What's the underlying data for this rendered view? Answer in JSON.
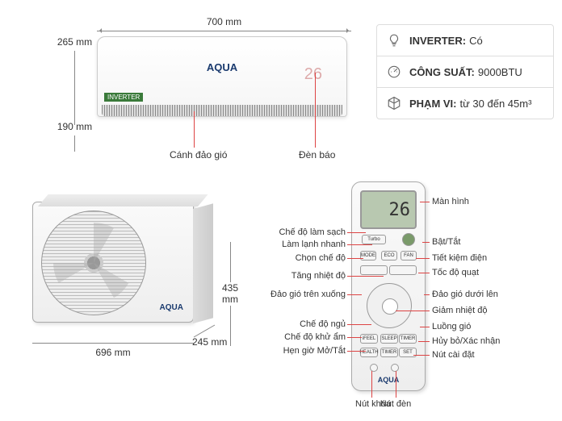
{
  "colors": {
    "callout": "#d44",
    "brand": "#1a3a6e",
    "dim": "#888",
    "lcd": "#b8c8b0"
  },
  "indoor": {
    "width": "700 mm",
    "height": "265 mm",
    "depth": "190 mm",
    "brand": "AQUA",
    "badge": "INVERTER",
    "display": "26",
    "callout_vent": "Cánh đảo gió",
    "callout_led": "Đèn báo"
  },
  "specs": [
    {
      "icon": "bulb",
      "label": "INVERTER:",
      "value": "Có"
    },
    {
      "icon": "gauge",
      "label": "CÔNG SUẤT:",
      "value": "9000BTU"
    },
    {
      "icon": "cube",
      "label": "PHẠM VI:",
      "value": "từ 30 đến 45m³"
    }
  ],
  "outdoor": {
    "brand": "AQUA",
    "width": "696 mm",
    "height": "435 mm",
    "depth": "245 mm"
  },
  "remote": {
    "brand": "AQUA",
    "display": "26",
    "labels_left": [
      "Chế độ làm sạch",
      "Làm lạnh nhanh",
      "Chọn chế độ",
      "Tăng nhiệt độ",
      "Đảo gió trên xuống",
      "Chế độ ngủ",
      "Chế độ khử ẩm",
      "Hẹn giờ Mở/Tắt"
    ],
    "labels_right": [
      "Màn hình",
      "Bật/Tắt",
      "Tiết kiệm điện",
      "Tốc độ quạt",
      "Đảo gió dưới lên",
      "Giảm nhiệt độ",
      "Luồng gió",
      "Hủy bỏ/Xác nhận",
      "Nút cài đặt"
    ],
    "labels_bottom": [
      "Nút khóa",
      "Nút đèn"
    ],
    "left_y": [
      68,
      83,
      100,
      122,
      145,
      182,
      198,
      215
    ],
    "left_lead_x": [
      133,
      141,
      130,
      155,
      128,
      140,
      128,
      133
    ],
    "right_y": [
      30,
      80,
      100,
      118,
      145,
      165,
      185,
      203,
      220
    ],
    "right_lead_x": [
      200,
      203,
      195,
      198,
      205,
      170,
      200,
      198,
      192
    ],
    "bottom_x": [
      135,
      165
    ]
  }
}
